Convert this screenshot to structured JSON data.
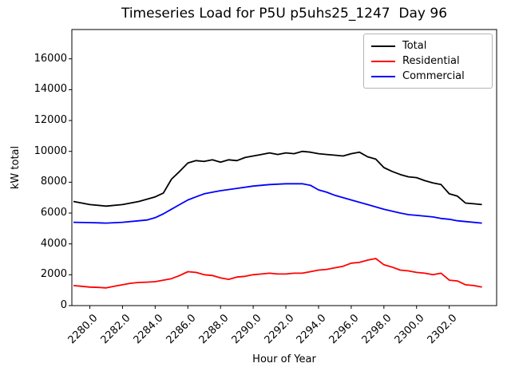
{
  "title": "Timeseries Load for P5U p5uhs25_1247  Day 96",
  "xlabel": "Hour of Year",
  "ylabel": "kW total",
  "chart_data": {
    "type": "line",
    "title": "Timeseries Load for P5U p5uhs25_1247  Day 96",
    "xlabel": "Hour of Year",
    "ylabel": "kW total",
    "xlim": [
      2278.9,
      2304.9
    ],
    "ylim": [
      0,
      17900
    ],
    "grid": false,
    "legend_position": "upper right",
    "xticks": [
      2280,
      2282,
      2284,
      2286,
      2288,
      2290,
      2292,
      2294,
      2296,
      2298,
      2300,
      2302
    ],
    "xtick_labels": [
      "2280.0",
      "2282.0",
      "2284.0",
      "2286.0",
      "2288.0",
      "2290.0",
      "2292.0",
      "2294.0",
      "2296.0",
      "2298.0",
      "2300.0",
      "2302.0"
    ],
    "yticks": [
      0,
      2000,
      4000,
      6000,
      8000,
      10000,
      12000,
      14000,
      16000
    ],
    "ytick_labels": [
      "0",
      "2000",
      "4000",
      "6000",
      "8000",
      "10000",
      "12000",
      "14000",
      "16000"
    ],
    "series": [
      {
        "name": "Total",
        "color": "#000000",
        "points": [
          [
            2279,
            6750
          ],
          [
            2280,
            6550
          ],
          [
            2281,
            6450
          ],
          [
            2282,
            6550
          ],
          [
            2283,
            6750
          ],
          [
            2284,
            7050
          ],
          [
            2284.5,
            7300
          ],
          [
            2285,
            8200
          ],
          [
            2285.5,
            8700
          ],
          [
            2286,
            9250
          ],
          [
            2286.5,
            9400
          ],
          [
            2287,
            9350
          ],
          [
            2287.5,
            9450
          ],
          [
            2288,
            9300
          ],
          [
            2288.5,
            9450
          ],
          [
            2289,
            9400
          ],
          [
            2289.5,
            9600
          ],
          [
            2290,
            9700
          ],
          [
            2290.5,
            9800
          ],
          [
            2291,
            9900
          ],
          [
            2291.5,
            9800
          ],
          [
            2292,
            9900
          ],
          [
            2292.5,
            9850
          ],
          [
            2293,
            10000
          ],
          [
            2293.5,
            9950
          ],
          [
            2294,
            9850
          ],
          [
            2294.5,
            9800
          ],
          [
            2295,
            9750
          ],
          [
            2295.5,
            9700
          ],
          [
            2296,
            9850
          ],
          [
            2296.5,
            9950
          ],
          [
            2297,
            9650
          ],
          [
            2297.5,
            9500
          ],
          [
            2298,
            8950
          ],
          [
            2298.5,
            8700
          ],
          [
            2299,
            8500
          ],
          [
            2299.5,
            8350
          ],
          [
            2300,
            8300
          ],
          [
            2300.5,
            8100
          ],
          [
            2301,
            7950
          ],
          [
            2301.5,
            7850
          ],
          [
            2302,
            7250
          ],
          [
            2302.5,
            7100
          ],
          [
            2303,
            6650
          ],
          [
            2303.5,
            6600
          ],
          [
            2304,
            6550
          ]
        ]
      },
      {
        "name": "Residential",
        "color": "#ff0000",
        "points": [
          [
            2279,
            1300
          ],
          [
            2279.5,
            1250
          ],
          [
            2280,
            1200
          ],
          [
            2280.5,
            1180
          ],
          [
            2281,
            1150
          ],
          [
            2281.5,
            1250
          ],
          [
            2282,
            1350
          ],
          [
            2282.5,
            1450
          ],
          [
            2283,
            1500
          ],
          [
            2283.5,
            1520
          ],
          [
            2284,
            1550
          ],
          [
            2284.5,
            1650
          ],
          [
            2285,
            1750
          ],
          [
            2285.5,
            1950
          ],
          [
            2286,
            2200
          ],
          [
            2286.5,
            2150
          ],
          [
            2287,
            2000
          ],
          [
            2287.5,
            1950
          ],
          [
            2288,
            1800
          ],
          [
            2288.5,
            1700
          ],
          [
            2289,
            1850
          ],
          [
            2289.5,
            1900
          ],
          [
            2290,
            2000
          ],
          [
            2290.5,
            2050
          ],
          [
            2291,
            2100
          ],
          [
            2291.5,
            2050
          ],
          [
            2292,
            2050
          ],
          [
            2292.5,
            2100
          ],
          [
            2293,
            2100
          ],
          [
            2293.5,
            2200
          ],
          [
            2294,
            2300
          ],
          [
            2294.5,
            2350
          ],
          [
            2295,
            2450
          ],
          [
            2295.5,
            2550
          ],
          [
            2296,
            2750
          ],
          [
            2296.5,
            2800
          ],
          [
            2297,
            2950
          ],
          [
            2297.5,
            3050
          ],
          [
            2298,
            2650
          ],
          [
            2298.5,
            2500
          ],
          [
            2299,
            2300
          ],
          [
            2299.5,
            2250
          ],
          [
            2300,
            2150
          ],
          [
            2300.5,
            2100
          ],
          [
            2301,
            2000
          ],
          [
            2301.5,
            2100
          ],
          [
            2302,
            1650
          ],
          [
            2302.5,
            1600
          ],
          [
            2303,
            1350
          ],
          [
            2303.5,
            1300
          ],
          [
            2304,
            1200
          ]
        ]
      },
      {
        "name": "Commercial",
        "color": "#0000ff",
        "points": [
          [
            2279,
            5400
          ],
          [
            2280,
            5380
          ],
          [
            2281,
            5350
          ],
          [
            2282,
            5400
          ],
          [
            2283,
            5500
          ],
          [
            2283.5,
            5550
          ],
          [
            2284,
            5700
          ],
          [
            2284.5,
            5950
          ],
          [
            2285,
            6250
          ],
          [
            2285.5,
            6550
          ],
          [
            2286,
            6850
          ],
          [
            2286.5,
            7050
          ],
          [
            2287,
            7250
          ],
          [
            2287.5,
            7350
          ],
          [
            2288,
            7450
          ],
          [
            2289,
            7600
          ],
          [
            2290,
            7750
          ],
          [
            2291,
            7850
          ],
          [
            2292,
            7900
          ],
          [
            2293,
            7900
          ],
          [
            2293.5,
            7800
          ],
          [
            2294,
            7500
          ],
          [
            2294.5,
            7350
          ],
          [
            2295,
            7150
          ],
          [
            2296,
            6850
          ],
          [
            2297,
            6550
          ],
          [
            2298,
            6250
          ],
          [
            2299,
            6000
          ],
          [
            2299.5,
            5900
          ],
          [
            2300,
            5850
          ],
          [
            2300.5,
            5800
          ],
          [
            2301,
            5750
          ],
          [
            2301.5,
            5650
          ],
          [
            2302,
            5600
          ],
          [
            2302.5,
            5500
          ],
          [
            2303,
            5450
          ],
          [
            2304,
            5350
          ]
        ]
      }
    ]
  }
}
